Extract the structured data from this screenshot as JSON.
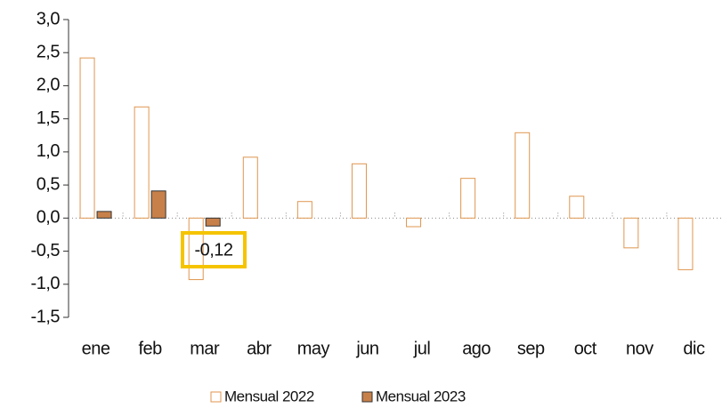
{
  "chart_data": {
    "type": "bar",
    "categories": [
      "ene",
      "feb",
      "mar",
      "abr",
      "may",
      "jun",
      "jul",
      "ago",
      "sep",
      "oct",
      "nov",
      "dic"
    ],
    "series": [
      {
        "name": "Mensual 2022",
        "color": "#e0964f",
        "fill": "#ffffff",
        "values": [
          2.42,
          1.68,
          -0.93,
          0.92,
          0.25,
          0.82,
          -0.13,
          0.6,
          1.29,
          0.33,
          -0.45,
          -0.78
        ]
      },
      {
        "name": "Mensual 2023",
        "color": "#c8804a",
        "fill": "#c8804a",
        "values": [
          0.1,
          0.41,
          -0.12,
          null,
          null,
          null,
          null,
          null,
          null,
          null,
          null,
          null
        ],
        "value_labels": [
          null,
          null,
          "-0,12",
          null,
          null,
          null,
          null,
          null,
          null,
          null,
          null,
          null
        ]
      }
    ],
    "ylim": [
      -1.5,
      3.0
    ],
    "yticks": [
      {
        "value": -1.5,
        "label": "-1,5"
      },
      {
        "value": -1.0,
        "label": "-1,0"
      },
      {
        "value": -0.5,
        "label": "-0,5"
      },
      {
        "value": 0,
        "label": "0,0"
      },
      {
        "value": 0.5,
        "label": "0,5"
      },
      {
        "value": 1.0,
        "label": "1,0"
      },
      {
        "value": 1.5,
        "label": "1,5"
      },
      {
        "value": 2.0,
        "label": "2,0"
      },
      {
        "value": 2.5,
        "label": "2,5"
      },
      {
        "value": 3.0,
        "label": "3,0"
      }
    ],
    "grid": false,
    "legend": "bottom",
    "highlight_color": "#f5c400"
  }
}
